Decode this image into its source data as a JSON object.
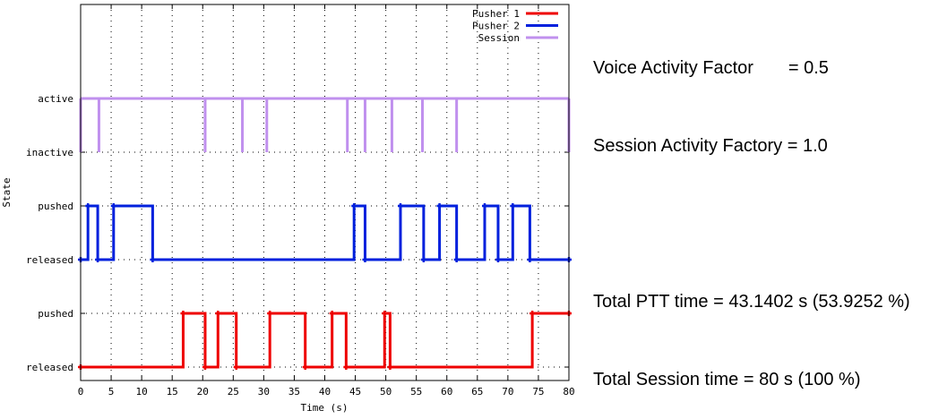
{
  "stats": {
    "voice_activity": "Voice Activity Factor       = 0.5",
    "session_activity": "Session Activity Factory = 1.0",
    "total_ptt": "Total PTT time = 43.1402 s (53.9252 %)",
    "total_session": "Total Session time = 80 s (100 %)"
  },
  "chart_data": {
    "type": "line",
    "xlabel": "Time (s)",
    "ylabel": "State",
    "xlim": [
      0,
      80
    ],
    "x_ticks": [
      0,
      5,
      10,
      15,
      20,
      25,
      30,
      35,
      40,
      45,
      50,
      55,
      60,
      65,
      70,
      75,
      80
    ],
    "y_ticks": [
      {
        "label": "released",
        "level": 0
      },
      {
        "label": "pushed",
        "level": 1
      },
      {
        "label": "released",
        "level": 2
      },
      {
        "label": "pushed",
        "level": 3
      },
      {
        "label": "inactive",
        "level": 4
      },
      {
        "label": "active",
        "level": 5
      }
    ],
    "ylim": [
      -0.25,
      6.75
    ],
    "grid": true,
    "legend_position": "top-right",
    "series": [
      {
        "name": "Pusher 1",
        "color": "#ee0000",
        "markers": true,
        "base_level": 0,
        "transitions": [
          0,
          16.8,
          20.4,
          22.5,
          25.5,
          31,
          36.8,
          41.2,
          43.5,
          49.8,
          50.7,
          74,
          80
        ],
        "states": [
          0,
          1,
          0,
          1,
          0,
          1,
          0,
          1,
          0,
          1,
          0,
          1
        ]
      },
      {
        "name": "Pusher 2",
        "color": "#0020dd",
        "markers": true,
        "base_level": 2,
        "transitions": [
          0,
          1.2,
          2.8,
          5.4,
          11.8,
          44.8,
          46.6,
          52.4,
          56.2,
          58.8,
          61.6,
          66.2,
          68.4,
          70.8,
          73.6,
          80
        ],
        "states": [
          0,
          1,
          0,
          1,
          0,
          1,
          0,
          1,
          0,
          1,
          0,
          1,
          0,
          1,
          0
        ]
      },
      {
        "name": "Session",
        "color": "#c090ee",
        "markers": false,
        "base_level": 4,
        "transitions": [
          0,
          3,
          20.4,
          26.5,
          30.5,
          43.7,
          46.6,
          51,
          56,
          61.6,
          80
        ],
        "states": [
          1,
          1,
          1,
          1,
          1,
          1,
          1,
          1,
          1,
          1
        ],
        "dips": [
          0,
          3,
          20.4,
          26.5,
          30.5,
          43.7,
          46.6,
          51,
          56,
          61.6,
          80
        ]
      }
    ]
  }
}
